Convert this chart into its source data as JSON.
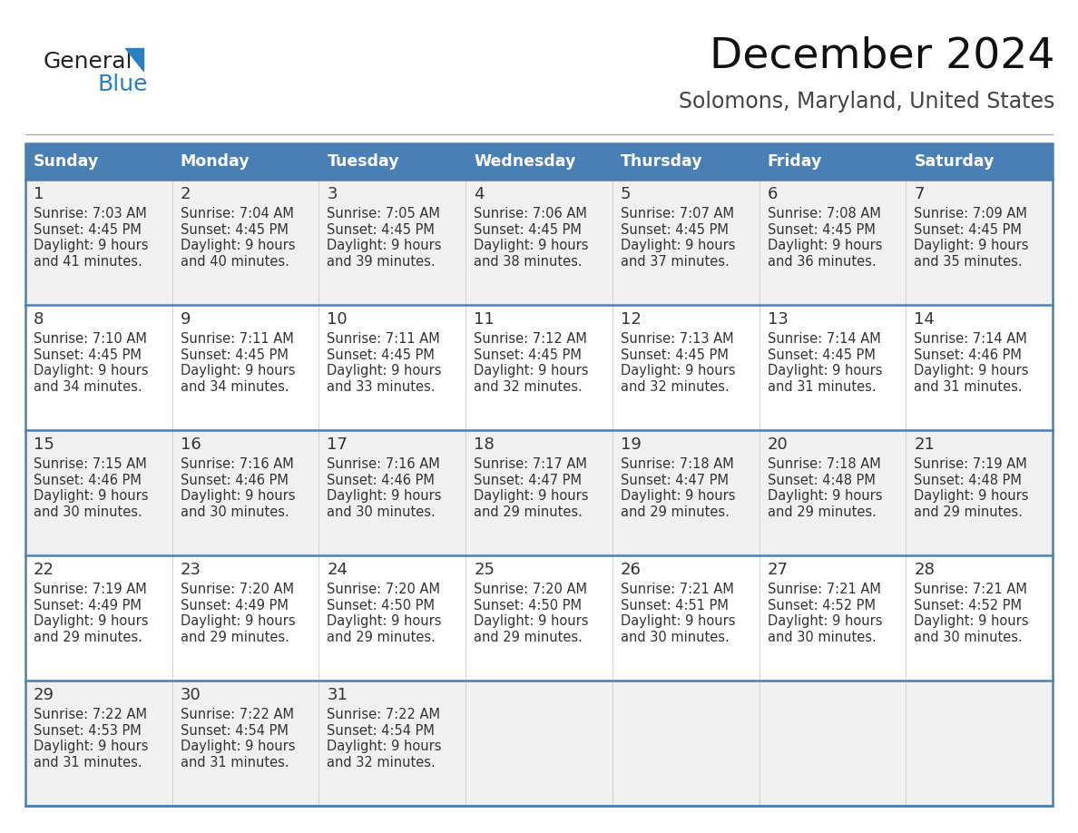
{
  "title": "December 2024",
  "subtitle": "Solomons, Maryland, United States",
  "days_of_week": [
    "Sunday",
    "Monday",
    "Tuesday",
    "Wednesday",
    "Thursday",
    "Friday",
    "Saturday"
  ],
  "header_bg": "#4a7fb5",
  "header_text": "#ffffff",
  "row_bg_1": "#f0f0f0",
  "row_bg_2": "#ffffff",
  "border_color": "#4a7fb5",
  "text_color": "#333333",
  "day_num_color": "#333333",
  "logo_general_color": "#222222",
  "logo_blue_color": "#2b7ec1",
  "logo_triangle_color": "#2b7ec1",
  "calendar_data": [
    [
      {
        "day": 1,
        "sunrise": "7:03 AM",
        "sunset": "4:45 PM",
        "daylight_h": "9 hours",
        "daylight_m": "and 41 minutes."
      },
      {
        "day": 2,
        "sunrise": "7:04 AM",
        "sunset": "4:45 PM",
        "daylight_h": "9 hours",
        "daylight_m": "and 40 minutes."
      },
      {
        "day": 3,
        "sunrise": "7:05 AM",
        "sunset": "4:45 PM",
        "daylight_h": "9 hours",
        "daylight_m": "and 39 minutes."
      },
      {
        "day": 4,
        "sunrise": "7:06 AM",
        "sunset": "4:45 PM",
        "daylight_h": "9 hours",
        "daylight_m": "and 38 minutes."
      },
      {
        "day": 5,
        "sunrise": "7:07 AM",
        "sunset": "4:45 PM",
        "daylight_h": "9 hours",
        "daylight_m": "and 37 minutes."
      },
      {
        "day": 6,
        "sunrise": "7:08 AM",
        "sunset": "4:45 PM",
        "daylight_h": "9 hours",
        "daylight_m": "and 36 minutes."
      },
      {
        "day": 7,
        "sunrise": "7:09 AM",
        "sunset": "4:45 PM",
        "daylight_h": "9 hours",
        "daylight_m": "and 35 minutes."
      }
    ],
    [
      {
        "day": 8,
        "sunrise": "7:10 AM",
        "sunset": "4:45 PM",
        "daylight_h": "9 hours",
        "daylight_m": "and 34 minutes."
      },
      {
        "day": 9,
        "sunrise": "7:11 AM",
        "sunset": "4:45 PM",
        "daylight_h": "9 hours",
        "daylight_m": "and 34 minutes."
      },
      {
        "day": 10,
        "sunrise": "7:11 AM",
        "sunset": "4:45 PM",
        "daylight_h": "9 hours",
        "daylight_m": "and 33 minutes."
      },
      {
        "day": 11,
        "sunrise": "7:12 AM",
        "sunset": "4:45 PM",
        "daylight_h": "9 hours",
        "daylight_m": "and 32 minutes."
      },
      {
        "day": 12,
        "sunrise": "7:13 AM",
        "sunset": "4:45 PM",
        "daylight_h": "9 hours",
        "daylight_m": "and 32 minutes."
      },
      {
        "day": 13,
        "sunrise": "7:14 AM",
        "sunset": "4:45 PM",
        "daylight_h": "9 hours",
        "daylight_m": "and 31 minutes."
      },
      {
        "day": 14,
        "sunrise": "7:14 AM",
        "sunset": "4:46 PM",
        "daylight_h": "9 hours",
        "daylight_m": "and 31 minutes."
      }
    ],
    [
      {
        "day": 15,
        "sunrise": "7:15 AM",
        "sunset": "4:46 PM",
        "daylight_h": "9 hours",
        "daylight_m": "and 30 minutes."
      },
      {
        "day": 16,
        "sunrise": "7:16 AM",
        "sunset": "4:46 PM",
        "daylight_h": "9 hours",
        "daylight_m": "and 30 minutes."
      },
      {
        "day": 17,
        "sunrise": "7:16 AM",
        "sunset": "4:46 PM",
        "daylight_h": "9 hours",
        "daylight_m": "and 30 minutes."
      },
      {
        "day": 18,
        "sunrise": "7:17 AM",
        "sunset": "4:47 PM",
        "daylight_h": "9 hours",
        "daylight_m": "and 29 minutes."
      },
      {
        "day": 19,
        "sunrise": "7:18 AM",
        "sunset": "4:47 PM",
        "daylight_h": "9 hours",
        "daylight_m": "and 29 minutes."
      },
      {
        "day": 20,
        "sunrise": "7:18 AM",
        "sunset": "4:48 PM",
        "daylight_h": "9 hours",
        "daylight_m": "and 29 minutes."
      },
      {
        "day": 21,
        "sunrise": "7:19 AM",
        "sunset": "4:48 PM",
        "daylight_h": "9 hours",
        "daylight_m": "and 29 minutes."
      }
    ],
    [
      {
        "day": 22,
        "sunrise": "7:19 AM",
        "sunset": "4:49 PM",
        "daylight_h": "9 hours",
        "daylight_m": "and 29 minutes."
      },
      {
        "day": 23,
        "sunrise": "7:20 AM",
        "sunset": "4:49 PM",
        "daylight_h": "9 hours",
        "daylight_m": "and 29 minutes."
      },
      {
        "day": 24,
        "sunrise": "7:20 AM",
        "sunset": "4:50 PM",
        "daylight_h": "9 hours",
        "daylight_m": "and 29 minutes."
      },
      {
        "day": 25,
        "sunrise": "7:20 AM",
        "sunset": "4:50 PM",
        "daylight_h": "9 hours",
        "daylight_m": "and 29 minutes."
      },
      {
        "day": 26,
        "sunrise": "7:21 AM",
        "sunset": "4:51 PM",
        "daylight_h": "9 hours",
        "daylight_m": "and 30 minutes."
      },
      {
        "day": 27,
        "sunrise": "7:21 AM",
        "sunset": "4:52 PM",
        "daylight_h": "9 hours",
        "daylight_m": "and 30 minutes."
      },
      {
        "day": 28,
        "sunrise": "7:21 AM",
        "sunset": "4:52 PM",
        "daylight_h": "9 hours",
        "daylight_m": "and 30 minutes."
      }
    ],
    [
      {
        "day": 29,
        "sunrise": "7:22 AM",
        "sunset": "4:53 PM",
        "daylight_h": "9 hours",
        "daylight_m": "and 31 minutes."
      },
      {
        "day": 30,
        "sunrise": "7:22 AM",
        "sunset": "4:54 PM",
        "daylight_h": "9 hours",
        "daylight_m": "and 31 minutes."
      },
      {
        "day": 31,
        "sunrise": "7:22 AM",
        "sunset": "4:54 PM",
        "daylight_h": "9 hours",
        "daylight_m": "and 32 minutes."
      },
      null,
      null,
      null,
      null
    ]
  ]
}
